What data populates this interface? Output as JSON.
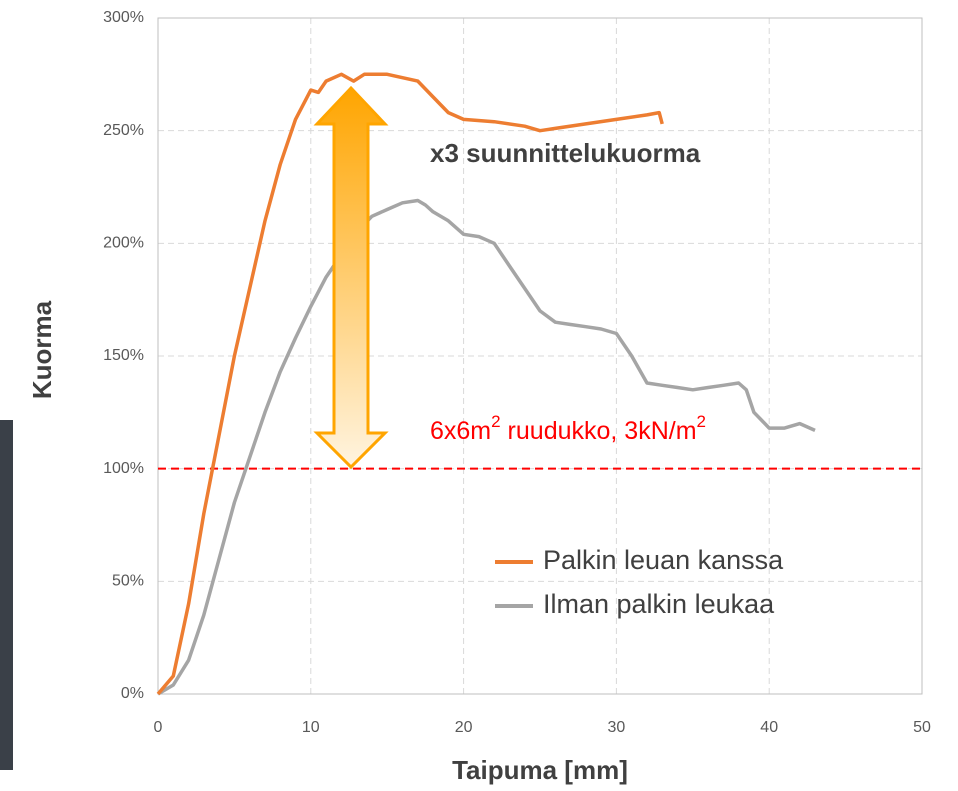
{
  "chart_data": {
    "type": "line",
    "xlabel": "Taipuma [mm]",
    "ylabel": "Kuorma",
    "xlim": [
      0,
      50
    ],
    "xticks": [
      0,
      10,
      20,
      30,
      40,
      50
    ],
    "ylim": [
      0,
      300
    ],
    "yticks": [
      {
        "value": 0,
        "label": "0%"
      },
      {
        "value": 50,
        "label": "50%"
      },
      {
        "value": 100,
        "label": "100%"
      },
      {
        "value": 150,
        "label": "150%"
      },
      {
        "value": 200,
        "label": "200%"
      },
      {
        "value": 250,
        "label": "250%"
      },
      {
        "value": 300,
        "label": "300%"
      }
    ],
    "grid": true,
    "legend": "lower right",
    "series": [
      {
        "name": "Palkin leuan kanssa",
        "color": "#ed7d31",
        "x": [
          0,
          1,
          2,
          3,
          4,
          5,
          6,
          7,
          8,
          9,
          10,
          10.5,
          11,
          12,
          12.8,
          13.5,
          15,
          17,
          18,
          19,
          20,
          22,
          24,
          25,
          26,
          28,
          30,
          32,
          32.8,
          33
        ],
        "values": [
          0,
          8,
          40,
          80,
          115,
          150,
          180,
          210,
          235,
          255,
          268,
          267,
          272,
          275,
          272,
          275,
          275,
          272,
          265,
          258,
          255,
          254,
          252,
          250,
          251,
          253,
          255,
          257,
          258,
          253
        ]
      },
      {
        "name": "Ilman palkin leukaa",
        "color": "#a5a5a5",
        "x": [
          0,
          1,
          2,
          3,
          4,
          5,
          6,
          7,
          8,
          9,
          10,
          11,
          12,
          13,
          14,
          15,
          16,
          17,
          17.5,
          18,
          19,
          20,
          21,
          22,
          23,
          24,
          25,
          26,
          27,
          28,
          29,
          30,
          31,
          32,
          33,
          34,
          35,
          36,
          37,
          38,
          38.5,
          39,
          40,
          41,
          42,
          43
        ],
        "values": [
          0,
          4,
          15,
          35,
          60,
          85,
          105,
          125,
          143,
          158,
          172,
          185,
          195,
          205,
          212,
          215,
          218,
          219,
          217,
          214,
          210,
          204,
          203,
          200,
          190,
          180,
          170,
          165,
          164,
          163,
          162,
          160,
          150,
          138,
          137,
          136,
          135,
          136,
          137,
          138,
          135,
          125,
          118,
          118,
          120,
          117
        ]
      }
    ],
    "reference_lines": [
      {
        "value": 100,
        "color": "#ff0000"
      }
    ],
    "annotations": [
      {
        "text": "x3 suunnittelukuorma"
      },
      {
        "parts": [
          "6x6m",
          "2",
          " ruudukko, 3kN/m",
          "2"
        ]
      }
    ]
  }
}
